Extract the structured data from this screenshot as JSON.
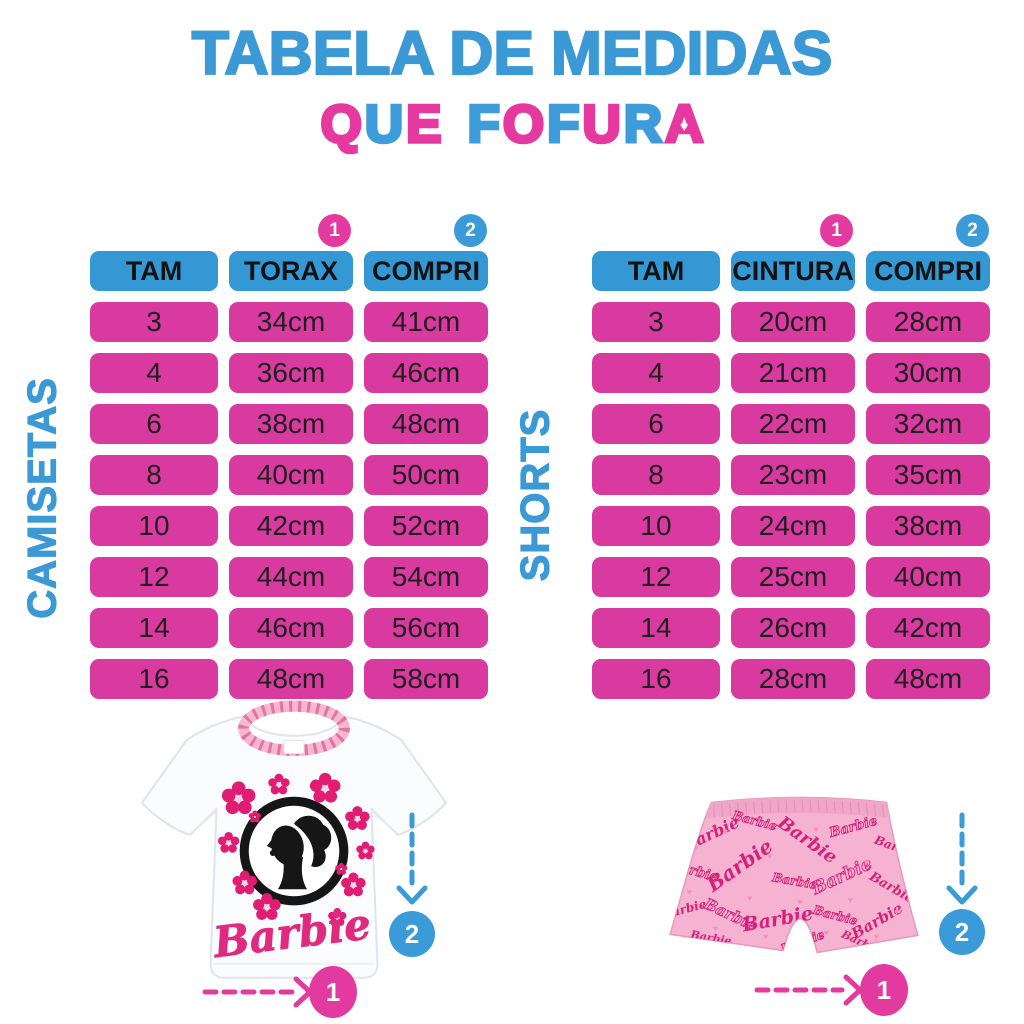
{
  "title": "TABELA DE MEDIDAS",
  "subtitle": {
    "text": "QUE FOFURA",
    "letters": [
      {
        "char": "Q",
        "color": "#E6399F",
        "heart": true
      },
      {
        "char": "U",
        "color": "#3D9CD9",
        "heart": false
      },
      {
        "char": "E",
        "color": "#E6399F",
        "heart": false
      },
      {
        "char": " "
      },
      {
        "char": "F",
        "color": "#3D9CD9",
        "heart": false
      },
      {
        "char": "O",
        "color": "#E6399F",
        "heart": true
      },
      {
        "char": "F",
        "color": "#3D9CD9",
        "heart": false
      },
      {
        "char": "U",
        "color": "#E6399F",
        "heart": false
      },
      {
        "char": "R",
        "color": "#3D9CD9",
        "heart": false
      },
      {
        "char": "A",
        "color": "#E6399F",
        "heart": true
      }
    ]
  },
  "colors": {
    "header_blue": "#3398D4",
    "cell_pink": "#D93A9F",
    "badge_pink": "#E23A9F",
    "badge_blue": "#3B9BD8",
    "title_blue": "#3B99D5"
  },
  "icons": {
    "heart": "♥"
  },
  "chart_data": [
    {
      "type": "table",
      "title": "CAMISETAS",
      "columns": [
        "TAM",
        "TORAX",
        "COMPRI"
      ],
      "column_badges": {
        "TORAX": "1",
        "COMPRI": "2"
      },
      "rows": [
        [
          "3",
          "34cm",
          "41cm"
        ],
        [
          "4",
          "36cm",
          "46cm"
        ],
        [
          "6",
          "38cm",
          "48cm"
        ],
        [
          "8",
          "40cm",
          "50cm"
        ],
        [
          "10",
          "42cm",
          "52cm"
        ],
        [
          "12",
          "44cm",
          "54cm"
        ],
        [
          "14",
          "46cm",
          "56cm"
        ],
        [
          "16",
          "48cm",
          "58cm"
        ]
      ]
    },
    {
      "type": "table",
      "title": "SHORTS",
      "columns": [
        "TAM",
        "CINTURA",
        "COMPRI"
      ],
      "column_badges": {
        "CINTURA": "1",
        "COMPRI": "2"
      },
      "rows": [
        [
          "3",
          "20cm",
          "28cm"
        ],
        [
          "4",
          "21cm",
          "30cm"
        ],
        [
          "6",
          "22cm",
          "32cm"
        ],
        [
          "8",
          "23cm",
          "35cm"
        ],
        [
          "10",
          "24cm",
          "38cm"
        ],
        [
          "12",
          "25cm",
          "40cm"
        ],
        [
          "14",
          "26cm",
          "42cm"
        ],
        [
          "16",
          "28cm",
          "48cm"
        ]
      ]
    }
  ],
  "diagrams": {
    "tshirt": {
      "logo_text": "Barbie",
      "width_marker": "1",
      "length_marker": "2"
    },
    "shorts": {
      "print_text": "Barbie",
      "width_marker": "1",
      "length_marker": "2"
    }
  }
}
